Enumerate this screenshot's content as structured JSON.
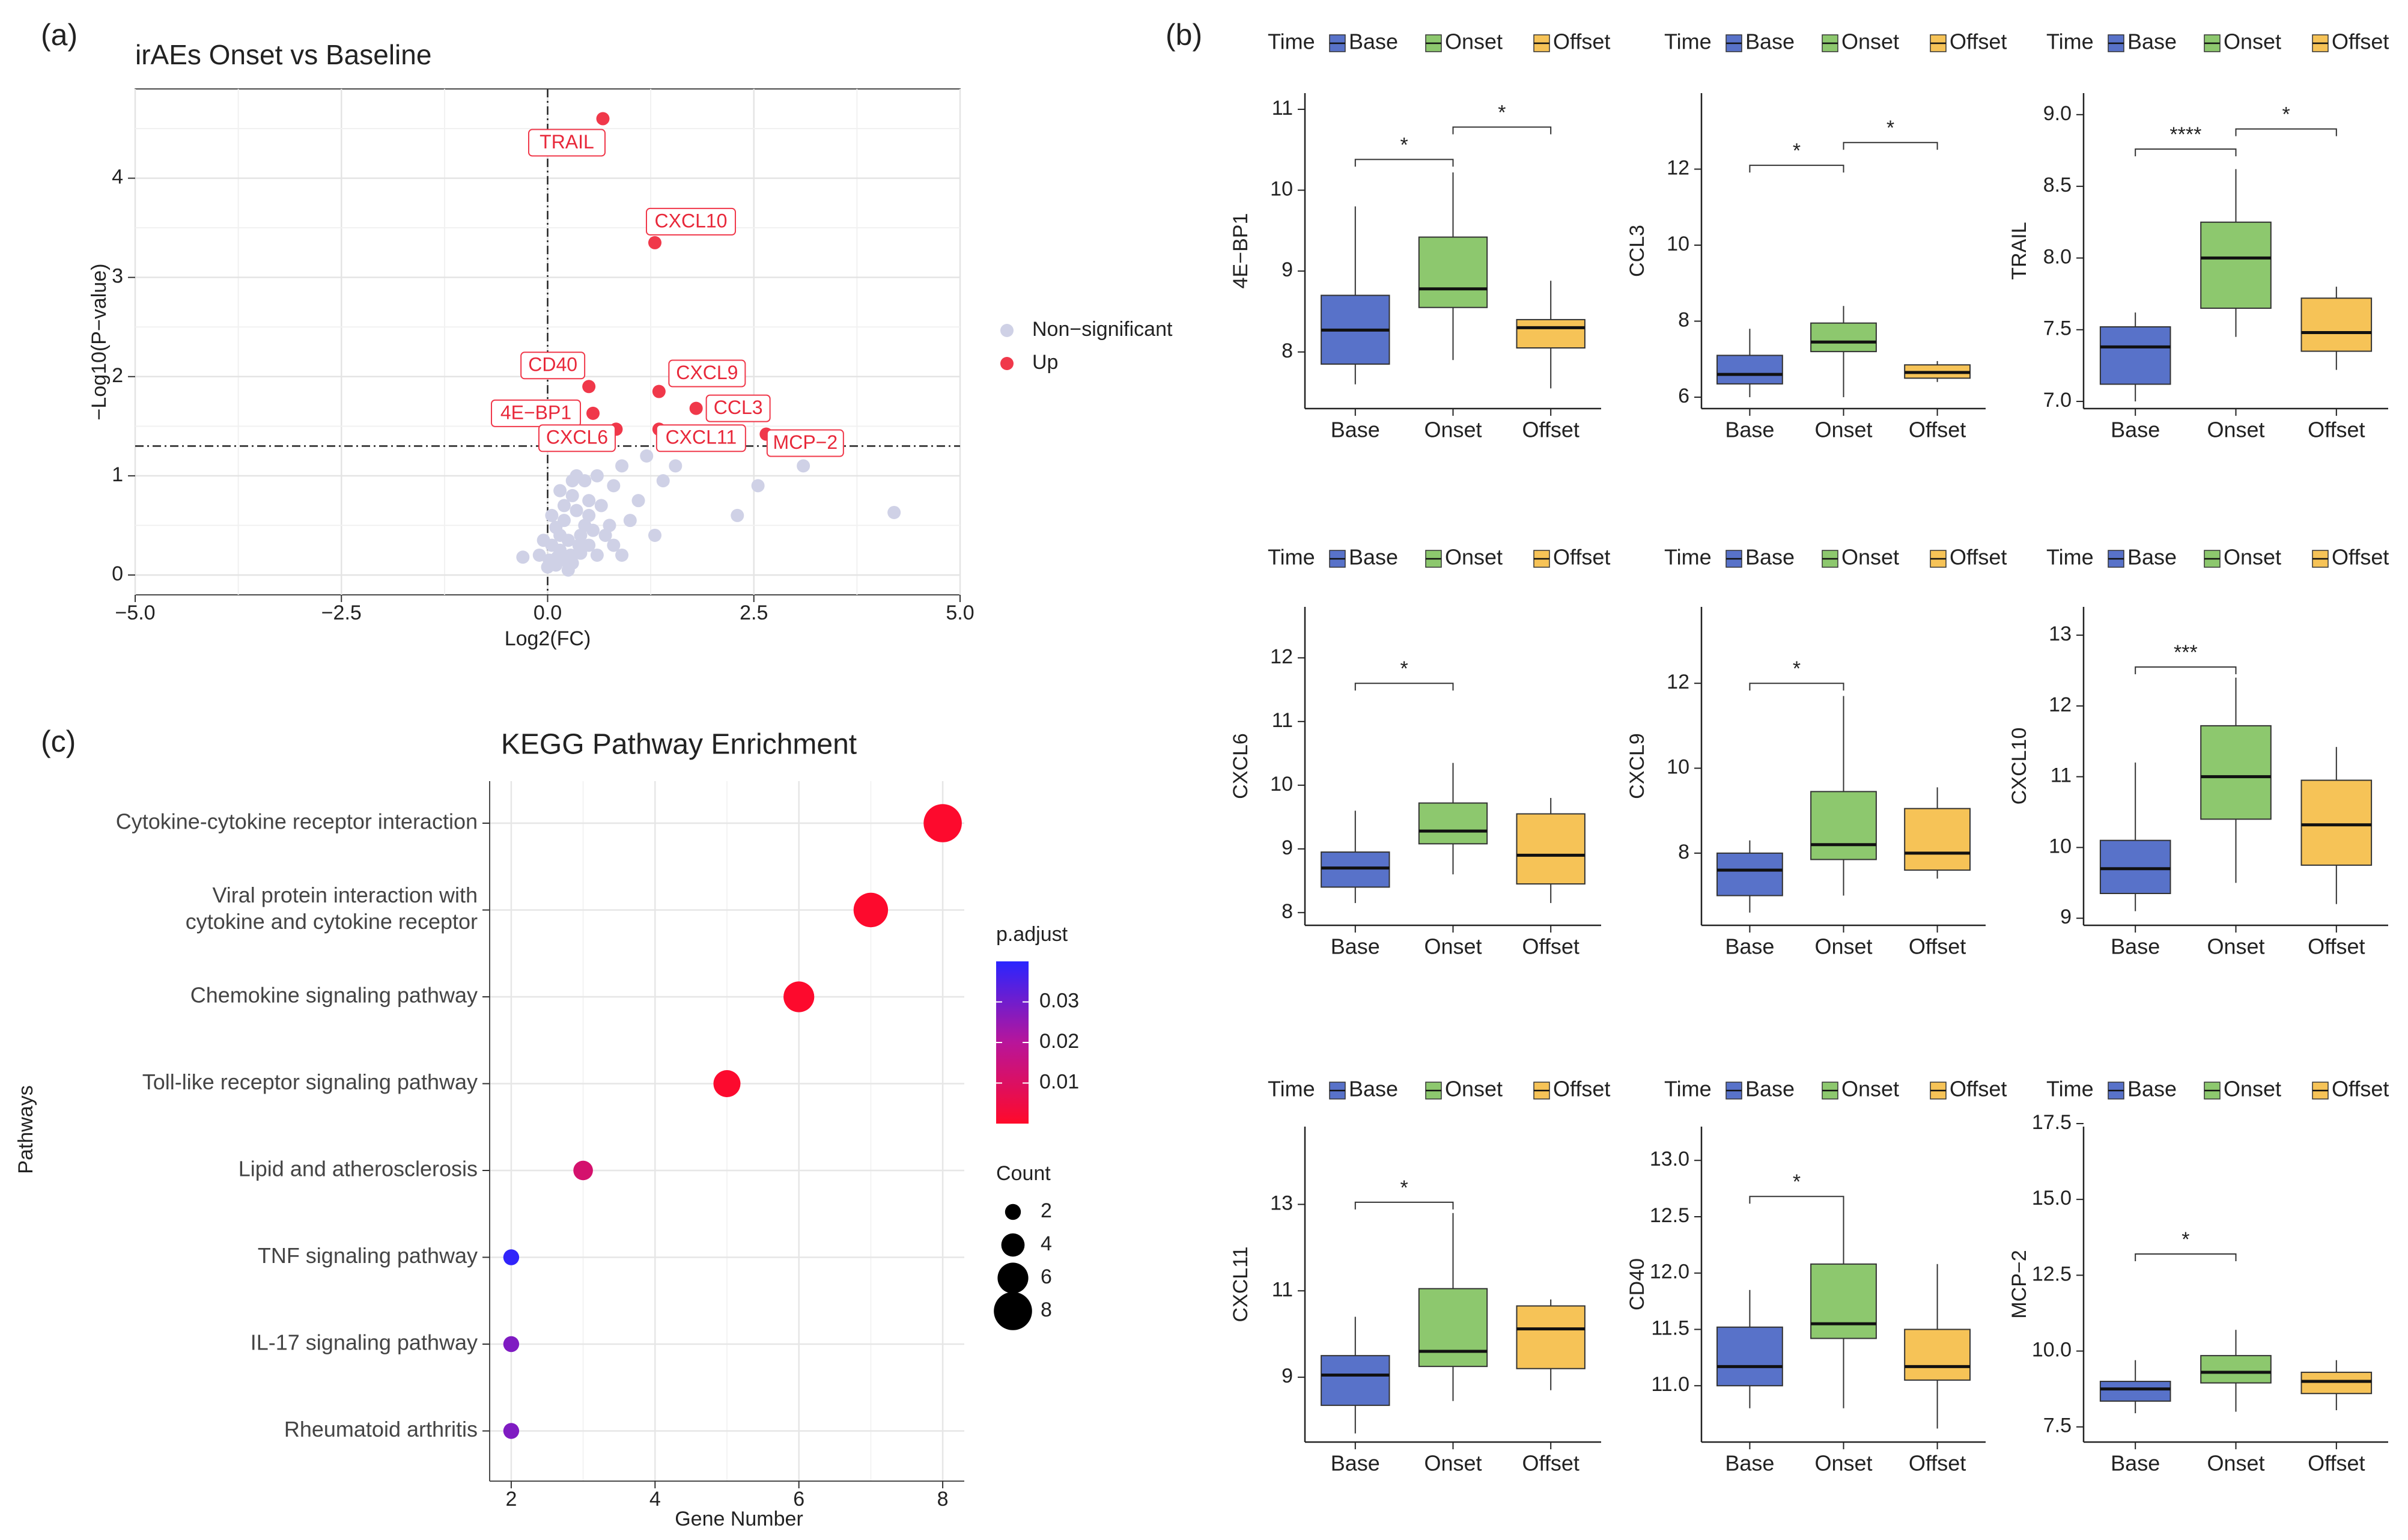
{
  "figure": {
    "panel_labels": [
      "(a)",
      "(b)",
      "(c)"
    ]
  },
  "chart_data": [
    {
      "type": "scatter",
      "id": "volcano",
      "title": "irAEs Onset vs Baseline",
      "xlabel": "Log2(FC)",
      "ylabel": "−Log10(P−value)",
      "xlim": [
        -5,
        5
      ],
      "ylim": [
        -0.2,
        4.9
      ],
      "xticks": [
        -5,
        -2.5,
        0,
        2.5,
        5
      ],
      "xtick_labels": [
        "−5.0",
        "−2.5",
        "0.0",
        "2.5",
        "5.0"
      ],
      "yticks": [
        0,
        1,
        2,
        3,
        4
      ],
      "ytick_labels": [
        "0",
        "1",
        "2",
        "3",
        "4"
      ],
      "vline_x": 0,
      "hline_y": 1.3,
      "legend": [
        {
          "label": "Non−significant",
          "color": "#cfd1e6"
        },
        {
          "label": "Up",
          "color": "#f0384a"
        }
      ],
      "up_points": [
        {
          "label": "TRAIL",
          "x": 0.67,
          "y": 4.6
        },
        {
          "label": "CXCL10",
          "x": 1.3,
          "y": 3.35
        },
        {
          "label": "CD40",
          "x": 0.5,
          "y": 1.9
        },
        {
          "label": "CXCL9",
          "x": 1.35,
          "y": 1.85
        },
        {
          "label": "4E−BP1",
          "x": 0.55,
          "y": 1.63
        },
        {
          "label": "CCL3",
          "x": 1.8,
          "y": 1.68
        },
        {
          "label": "CXCL6",
          "x": 0.83,
          "y": 1.47
        },
        {
          "label": "CXCL11",
          "x": 1.35,
          "y": 1.47
        },
        {
          "label": "MCP−2",
          "x": 2.65,
          "y": 1.42
        }
      ],
      "ns_points": [
        [
          0.1,
          0.1
        ],
        [
          0.2,
          0.15
        ],
        [
          -0.1,
          0.2
        ],
        [
          -0.3,
          0.18
        ],
        [
          0.05,
          0.3
        ],
        [
          0.15,
          0.25
        ],
        [
          0.3,
          0.12
        ],
        [
          0.4,
          0.22
        ],
        [
          0.25,
          0.35
        ],
        [
          0.5,
          0.3
        ],
        [
          0.6,
          0.2
        ],
        [
          0.7,
          0.4
        ],
        [
          0.8,
          0.3
        ],
        [
          0.9,
          0.2
        ],
        [
          1.0,
          0.55
        ],
        [
          0.45,
          0.5
        ],
        [
          0.35,
          0.65
        ],
        [
          0.2,
          0.55
        ],
        [
          0.1,
          0.48
        ],
        [
          0.0,
          0.08
        ],
        [
          -0.05,
          0.35
        ],
        [
          0.3,
          0.8
        ],
        [
          0.5,
          0.75
        ],
        [
          0.65,
          0.7
        ],
        [
          0.8,
          0.9
        ],
        [
          0.45,
          0.95
        ],
        [
          0.3,
          0.95
        ],
        [
          0.2,
          0.7
        ],
        [
          0.55,
          0.45
        ],
        [
          0.4,
          0.4
        ],
        [
          0.6,
          1.0
        ],
        [
          0.9,
          1.1
        ],
        [
          1.2,
          1.2
        ],
        [
          1.4,
          0.95
        ],
        [
          1.55,
          1.1
        ],
        [
          1.3,
          0.4
        ],
        [
          2.3,
          0.6
        ],
        [
          2.55,
          0.9
        ],
        [
          3.1,
          1.1
        ],
        [
          4.2,
          0.63
        ],
        [
          0.35,
          1.0
        ],
        [
          0.15,
          0.85
        ],
        [
          0.05,
          0.6
        ],
        [
          0.25,
          0.05
        ],
        [
          0.15,
          0.4
        ],
        [
          0.75,
          0.5
        ],
        [
          1.1,
          0.75
        ],
        [
          0.5,
          0.6
        ],
        [
          0.12,
          0.18
        ],
        [
          0.38,
          0.3
        ],
        [
          0.02,
          0.15
        ],
        [
          0.28,
          0.2
        ]
      ]
    },
    {
      "type": "box",
      "id": "boxplots",
      "legend_title": "Time",
      "groups": [
        "Base",
        "Onset",
        "Offset"
      ],
      "group_colors": [
        "#5872c9",
        "#8dc86e",
        "#f6c357"
      ],
      "panels": [
        {
          "ylabel": "4E−BP1",
          "ylim": [
            7.3,
            11.2
          ],
          "yticks": [
            8,
            9,
            10,
            11
          ],
          "ytick_labels": [
            "8",
            "9",
            "10",
            "11"
          ],
          "boxes": [
            {
              "min": 7.6,
              "q1": 7.85,
              "median": 8.27,
              "q3": 8.7,
              "max": 9.8
            },
            {
              "min": 7.9,
              "q1": 8.55,
              "median": 8.78,
              "q3": 9.42,
              "max": 10.22
            },
            {
              "min": 7.55,
              "q1": 8.05,
              "median": 8.3,
              "q3": 8.4,
              "max": 8.88
            }
          ],
          "sig": [
            {
              "from": 0,
              "to": 1,
              "y": 10.38,
              "label": "*"
            },
            {
              "from": 1,
              "to": 2,
              "y": 10.78,
              "label": "*"
            }
          ]
        },
        {
          "ylabel": "CCL3",
          "ylim": [
            5.7,
            14
          ],
          "yticks": [
            6,
            8,
            10,
            12
          ],
          "ytick_labels": [
            "6",
            "8",
            "10",
            "12"
          ],
          "boxes": [
            {
              "min": 6.0,
              "q1": 6.35,
              "median": 6.6,
              "q3": 7.1,
              "max": 7.8
            },
            {
              "min": 6.0,
              "q1": 7.2,
              "median": 7.45,
              "q3": 7.95,
              "max": 8.4
            },
            {
              "min": 6.4,
              "q1": 6.5,
              "median": 6.65,
              "q3": 6.85,
              "max": 6.95
            }
          ],
          "sig": [
            {
              "from": 0,
              "to": 1,
              "y": 12.1,
              "label": "*"
            },
            {
              "from": 1,
              "to": 2,
              "y": 12.7,
              "label": "*"
            }
          ]
        },
        {
          "ylabel": "TRAIL",
          "ylim": [
            6.95,
            9.15
          ],
          "yticks": [
            7.0,
            7.5,
            8.0,
            8.5,
            9.0
          ],
          "ytick_labels": [
            "7.0",
            "7.5",
            "8.0",
            "8.5",
            "9.0"
          ],
          "boxes": [
            {
              "min": 7.0,
              "q1": 7.12,
              "median": 7.38,
              "q3": 7.52,
              "max": 7.62
            },
            {
              "min": 7.45,
              "q1": 7.65,
              "median": 8.0,
              "q3": 8.25,
              "max": 8.62
            },
            {
              "min": 7.22,
              "q1": 7.35,
              "median": 7.48,
              "q3": 7.72,
              "max": 7.8
            }
          ],
          "sig": [
            {
              "from": 0,
              "to": 1,
              "y": 8.76,
              "label": "****"
            },
            {
              "from": 1,
              "to": 2,
              "y": 8.9,
              "label": "*"
            }
          ]
        },
        {
          "ylabel": "CXCL6",
          "ylim": [
            7.8,
            12.8
          ],
          "yticks": [
            8,
            9,
            10,
            11,
            12
          ],
          "ytick_labels": [
            "8",
            "9",
            "10",
            "11",
            "12"
          ],
          "boxes": [
            {
              "min": 8.15,
              "q1": 8.4,
              "median": 8.7,
              "q3": 8.95,
              "max": 9.6
            },
            {
              "min": 8.6,
              "q1": 9.08,
              "median": 9.28,
              "q3": 9.72,
              "max": 10.35
            },
            {
              "min": 8.15,
              "q1": 8.45,
              "median": 8.9,
              "q3": 9.55,
              "max": 9.8
            }
          ],
          "sig": [
            {
              "from": 0,
              "to": 1,
              "y": 11.6,
              "label": "*"
            }
          ]
        },
        {
          "ylabel": "CXCL9",
          "ylim": [
            6.3,
            13.8
          ],
          "yticks": [
            8,
            10,
            12
          ],
          "ytick_labels": [
            "8",
            "10",
            "12"
          ],
          "boxes": [
            {
              "min": 6.6,
              "q1": 7.0,
              "median": 7.6,
              "q3": 8.0,
              "max": 8.3
            },
            {
              "min": 7.0,
              "q1": 7.85,
              "median": 8.2,
              "q3": 9.45,
              "max": 11.7
            },
            {
              "min": 7.4,
              "q1": 7.6,
              "median": 8.0,
              "q3": 9.05,
              "max": 9.55
            }
          ],
          "sig": [
            {
              "from": 0,
              "to": 1,
              "y": 12.0,
              "label": "*"
            }
          ]
        },
        {
          "ylabel": "CXCL10",
          "ylim": [
            8.9,
            13.4
          ],
          "yticks": [
            9,
            10,
            11,
            12,
            13
          ],
          "ytick_labels": [
            "9",
            "10",
            "11",
            "12",
            "13"
          ],
          "boxes": [
            {
              "min": 9.1,
              "q1": 9.35,
              "median": 9.7,
              "q3": 10.1,
              "max": 11.2
            },
            {
              "min": 9.5,
              "q1": 10.4,
              "median": 11.0,
              "q3": 11.72,
              "max": 12.4
            },
            {
              "min": 9.2,
              "q1": 9.75,
              "median": 10.32,
              "q3": 10.95,
              "max": 11.42
            }
          ],
          "sig": [
            {
              "from": 0,
              "to": 1,
              "y": 12.55,
              "label": "***"
            }
          ]
        },
        {
          "ylabel": "CXCL11",
          "ylim": [
            7.5,
            14.8
          ],
          "yticks": [
            9,
            11,
            13
          ],
          "ytick_labels": [
            "9",
            "11",
            "13"
          ],
          "boxes": [
            {
              "min": 7.7,
              "q1": 8.35,
              "median": 9.05,
              "q3": 9.5,
              "max": 10.4
            },
            {
              "min": 8.45,
              "q1": 9.25,
              "median": 9.6,
              "q3": 11.05,
              "max": 12.8
            },
            {
              "min": 8.7,
              "q1": 9.2,
              "median": 10.12,
              "q3": 10.65,
              "max": 10.8
            }
          ],
          "sig": [
            {
              "from": 0,
              "to": 1,
              "y": 13.05,
              "label": "*"
            }
          ]
        },
        {
          "ylabel": "CD40",
          "ylim": [
            10.5,
            13.3
          ],
          "yticks": [
            11.0,
            11.5,
            12.0,
            12.5,
            13.0
          ],
          "ytick_labels": [
            "11.0",
            "11.5",
            "12.0",
            "12.5",
            "13.0"
          ],
          "boxes": [
            {
              "min": 10.8,
              "q1": 11.0,
              "median": 11.17,
              "q3": 11.52,
              "max": 11.85
            },
            {
              "min": 10.8,
              "q1": 11.42,
              "median": 11.55,
              "q3": 12.08,
              "max": 12.62
            },
            {
              "min": 10.62,
              "q1": 11.05,
              "median": 11.17,
              "q3": 11.5,
              "max": 12.08
            }
          ],
          "sig": [
            {
              "from": 0,
              "to": 1,
              "y": 12.68,
              "label": "*"
            }
          ]
        },
        {
          "ylabel": "MCP−2",
          "ylim": [
            7.0,
            17.4
          ],
          "yticks": [
            7.5,
            10.0,
            12.5,
            15.0,
            17.5
          ],
          "ytick_labels": [
            "7.5",
            "10.0",
            "12.5",
            "15.0",
            "17.5"
          ],
          "boxes": [
            {
              "min": 7.95,
              "q1": 8.35,
              "median": 8.75,
              "q3": 9.0,
              "max": 9.7
            },
            {
              "min": 8.0,
              "q1": 8.95,
              "median": 9.3,
              "q3": 9.85,
              "max": 10.7
            },
            {
              "min": 8.05,
              "q1": 8.6,
              "median": 9.0,
              "q3": 9.3,
              "max": 9.7
            }
          ],
          "sig": [
            {
              "from": 0,
              "to": 1,
              "y": 13.2,
              "label": "*"
            }
          ]
        }
      ]
    },
    {
      "type": "dot",
      "id": "kegg",
      "title": "KEGG Pathway Enrichment",
      "xlabel": "Gene Number",
      "ylabel": "Pathways",
      "xlim": [
        1.7,
        8.3
      ],
      "xticks": [
        2,
        4,
        6,
        8
      ],
      "xtick_labels": [
        "2",
        "4",
        "6",
        "8"
      ],
      "pathways": [
        {
          "label": "Cytokine-cytokine receptor interaction",
          "count": 8,
          "p_adjust": 0.0005
        },
        {
          "label": "Viral protein interaction with\ncytokine and cytokine receptor",
          "count": 7,
          "p_adjust": 0.0005
        },
        {
          "label": "Chemokine signaling pathway",
          "count": 6,
          "p_adjust": 0.0005
        },
        {
          "label": "Toll-like receptor signaling pathway",
          "count": 5,
          "p_adjust": 0.0008
        },
        {
          "label": "Lipid and atherosclerosis",
          "count": 3,
          "p_adjust": 0.012
        },
        {
          "label": "TNF signaling pathway",
          "count": 2,
          "p_adjust": 0.039
        },
        {
          "label": "IL-17 signaling pathway",
          "count": 2,
          "p_adjust": 0.028
        },
        {
          "label": "Rheumatoid arthritis",
          "count": 2,
          "p_adjust": 0.028
        }
      ],
      "color_legend": {
        "title": "p.adjust",
        "min": 0,
        "max": 0.04,
        "ticks": [
          0.03,
          0.02,
          0.01
        ],
        "tick_labels": [
          "0.03",
          "0.02",
          "0.01"
        ],
        "low_color": "#ff0a2a",
        "mid_color": "#b8159a",
        "high_color": "#2a25ff"
      },
      "size_legend": {
        "title": "Count",
        "values": [
          2,
          4,
          6,
          8
        ],
        "labels": [
          "2",
          "4",
          "6",
          "8"
        ]
      }
    }
  ]
}
